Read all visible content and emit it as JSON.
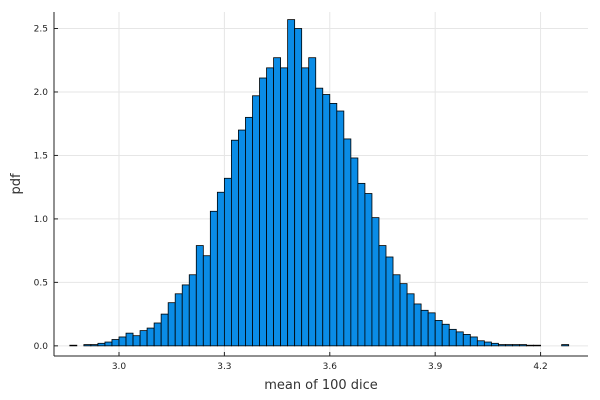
{
  "chart_data": {
    "type": "bar",
    "title": "",
    "xlabel": "mean of 100 dice",
    "ylabel": "pdf",
    "xlim": [
      2.815,
      4.335
    ],
    "ylim": [
      -0.08,
      2.63
    ],
    "x_ticks": [
      3.0,
      3.3,
      3.6,
      3.9,
      4.2
    ],
    "x_tick_labels": [
      "3.0",
      "3.3",
      "3.6",
      "3.9",
      "4.2"
    ],
    "y_ticks": [
      0.0,
      0.5,
      1.0,
      1.5,
      2.0,
      2.5
    ],
    "y_tick_labels": [
      "0.0",
      "0.5",
      "1.0",
      "1.5",
      "2.0",
      "2.5"
    ],
    "grid": true,
    "legend": "none",
    "bar_color": "#0a8ce6",
    "bin_width": 0.02,
    "series": [
      {
        "bin_starts": [
          2.86,
          2.88,
          2.9,
          2.92,
          2.94,
          2.96,
          2.98,
          3.0,
          3.02,
          3.04,
          3.06,
          3.08,
          3.1,
          3.12,
          3.14,
          3.16,
          3.18,
          3.2,
          3.22,
          3.24,
          3.26,
          3.28,
          3.3,
          3.32,
          3.34,
          3.36,
          3.38,
          3.4,
          3.42,
          3.44,
          3.46,
          3.48,
          3.5,
          3.52,
          3.54,
          3.56,
          3.58,
          3.6,
          3.62,
          3.64,
          3.66,
          3.68,
          3.7,
          3.72,
          3.74,
          3.76,
          3.78,
          3.8,
          3.82,
          3.84,
          3.86,
          3.88,
          3.9,
          3.92,
          3.94,
          3.96,
          3.98,
          4.0,
          4.02,
          4.04,
          4.06,
          4.08,
          4.1,
          4.12,
          4.14,
          4.16,
          4.18,
          4.2,
          4.22,
          4.24,
          4.26
        ],
        "values": [
          0.005,
          0.0,
          0.01,
          0.01,
          0.02,
          0.03,
          0.05,
          0.07,
          0.1,
          0.08,
          0.12,
          0.14,
          0.18,
          0.25,
          0.34,
          0.41,
          0.48,
          0.56,
          0.79,
          0.71,
          1.06,
          1.21,
          1.32,
          1.62,
          1.7,
          1.8,
          1.97,
          2.11,
          2.19,
          2.27,
          2.19,
          2.57,
          2.5,
          2.19,
          2.27,
          2.03,
          1.98,
          1.91,
          1.85,
          1.63,
          1.48,
          1.28,
          1.2,
          1.01,
          0.79,
          0.7,
          0.56,
          0.49,
          0.41,
          0.33,
          0.28,
          0.26,
          0.2,
          0.17,
          0.13,
          0.11,
          0.09,
          0.07,
          0.04,
          0.03,
          0.02,
          0.01,
          0.01,
          0.01,
          0.01,
          0.005,
          0.005,
          0.0,
          0.0,
          0.0,
          0.01
        ]
      }
    ]
  }
}
